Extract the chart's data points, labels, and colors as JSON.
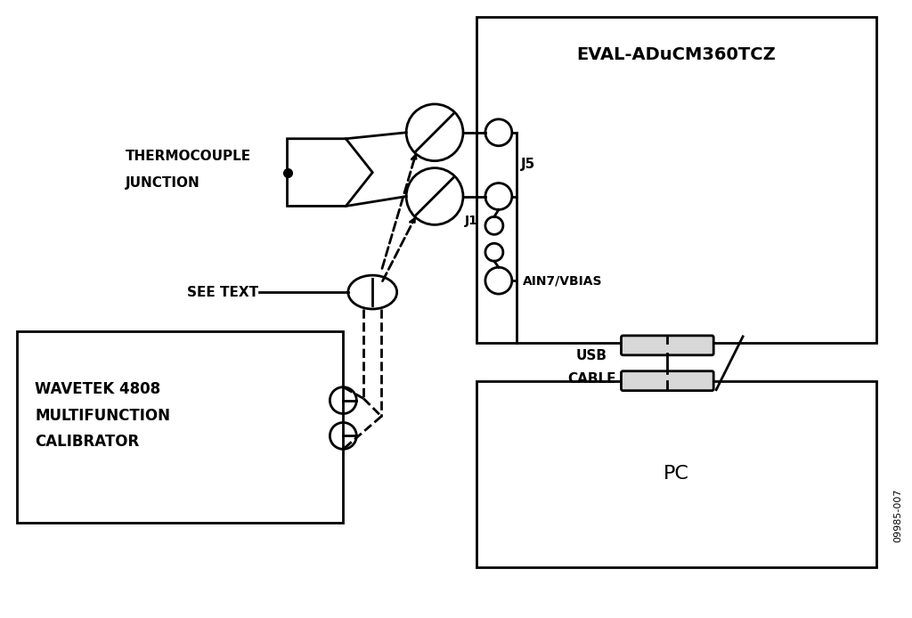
{
  "bg_color": "#ffffff",
  "line_color": "#000000",
  "fig_width": 10.24,
  "fig_height": 6.94,
  "eval_label": "EVAL-ADuCM360TCZ",
  "wavetek_label1": "WAVETEK 4808",
  "wavetek_label2": "MULTIFUNCTION",
  "wavetek_label3": "CALIBRATOR",
  "pc_label": "PC",
  "tc_label1": "THERMOCOUPLE",
  "tc_label2": "JUNCTION",
  "see_text_label": "SEE TEXT",
  "j5_label": "J5",
  "j1_label": "J1",
  "ain_label": "AIN7/VBIAS",
  "usb_label1": "USB",
  "usb_label2": "CABLE",
  "watermark": "09985-007"
}
